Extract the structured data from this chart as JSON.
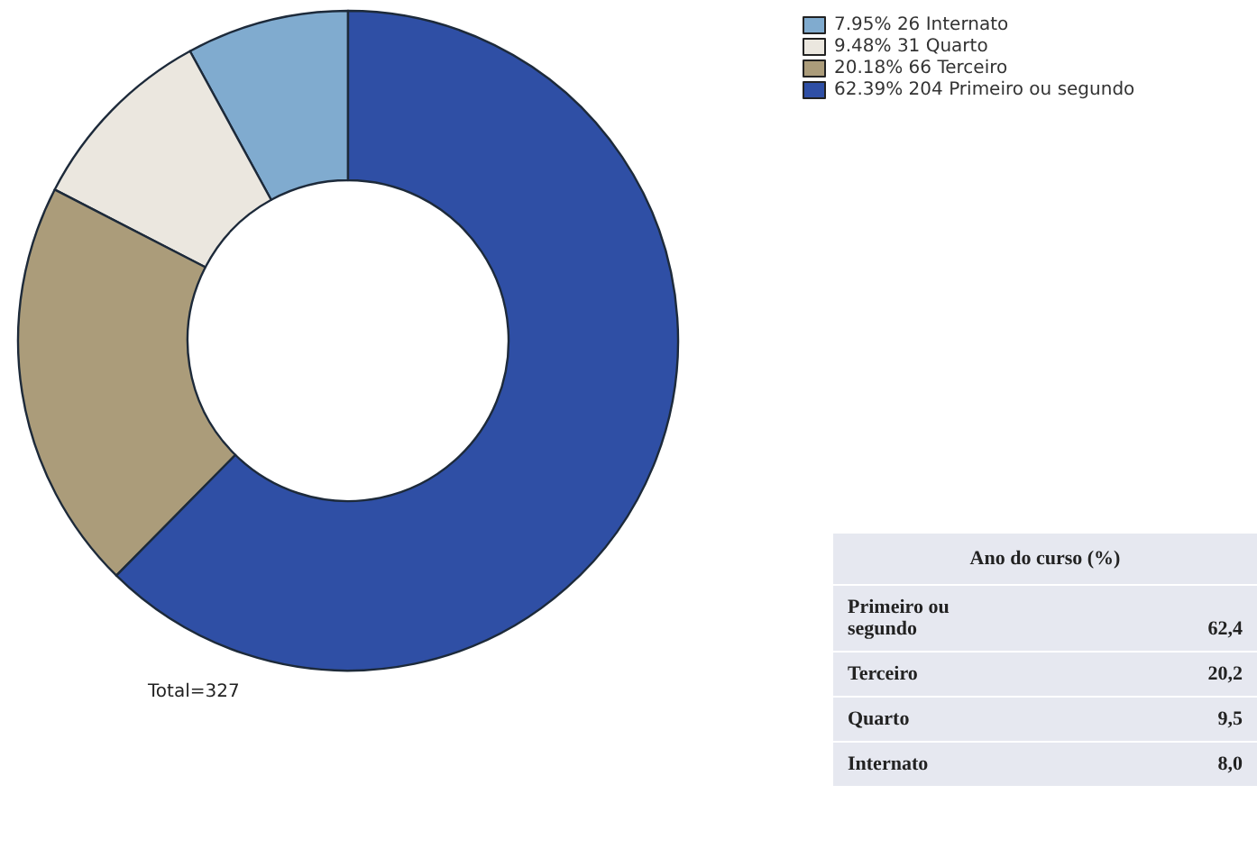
{
  "chart_data": [
    {
      "type": "donut",
      "categories": [
        "Internato",
        "Quarto",
        "Terceiro",
        "Primeiro ou segundo"
      ],
      "values": [
        26,
        31,
        66,
        204
      ],
      "value_labels": [
        "7.95% 26",
        "9.48% 31",
        "20.18% 66",
        "62.39% 204"
      ],
      "colors": [
        "#80abcf",
        "#ebe7df",
        "#ab9c7a",
        "#2f4fa5"
      ],
      "legend": "top right",
      "annotations": [
        "Total=327"
      ]
    },
    {
      "type": "other",
      "title": "Ano do curso (%)",
      "categories": [
        "Primeiro ou segundo",
        "Terceiro",
        "Quarto",
        "Internato"
      ],
      "values": [
        62.4,
        20.2,
        9.5,
        8.0
      ],
      "value_labels": [
        "62,4",
        "20,2",
        "9,5",
        "8,0"
      ]
    }
  ]
}
